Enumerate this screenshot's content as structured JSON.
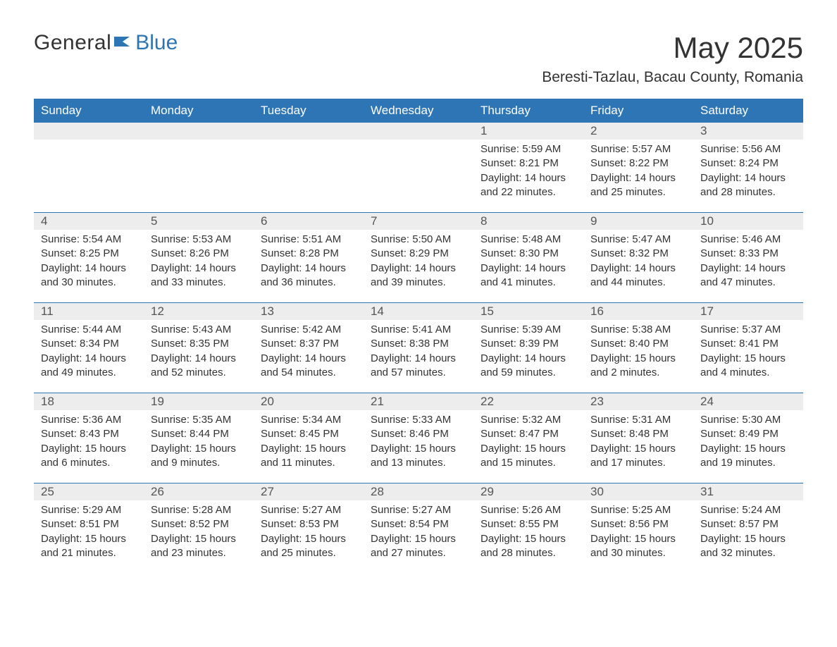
{
  "logo": {
    "text1": "General",
    "text2": "Blue"
  },
  "title": "May 2025",
  "subtitle": "Beresti-Tazlau, Bacau County, Romania",
  "colors": {
    "header_bg": "#2e75b6",
    "header_text": "#ffffff",
    "daynum_bg": "#ededed",
    "daynum_text": "#555555",
    "body_text": "#333333",
    "week_border": "#2e75b6",
    "page_bg": "#ffffff",
    "logo_blue": "#2e75b6"
  },
  "fonts": {
    "title_size_pt": 32,
    "subtitle_size_pt": 16,
    "header_size_pt": 13,
    "daynum_size_pt": 13,
    "body_size_pt": 11
  },
  "layout": {
    "columns": 7,
    "rows": 5
  },
  "day_headers": [
    "Sunday",
    "Monday",
    "Tuesday",
    "Wednesday",
    "Thursday",
    "Friday",
    "Saturday"
  ],
  "weeks": [
    [
      {
        "num": "",
        "sunrise": "",
        "sunset": "",
        "daylight": ""
      },
      {
        "num": "",
        "sunrise": "",
        "sunset": "",
        "daylight": ""
      },
      {
        "num": "",
        "sunrise": "",
        "sunset": "",
        "daylight": ""
      },
      {
        "num": "",
        "sunrise": "",
        "sunset": "",
        "daylight": ""
      },
      {
        "num": "1",
        "sunrise": "Sunrise: 5:59 AM",
        "sunset": "Sunset: 8:21 PM",
        "daylight": "Daylight: 14 hours and 22 minutes."
      },
      {
        "num": "2",
        "sunrise": "Sunrise: 5:57 AM",
        "sunset": "Sunset: 8:22 PM",
        "daylight": "Daylight: 14 hours and 25 minutes."
      },
      {
        "num": "3",
        "sunrise": "Sunrise: 5:56 AM",
        "sunset": "Sunset: 8:24 PM",
        "daylight": "Daylight: 14 hours and 28 minutes."
      }
    ],
    [
      {
        "num": "4",
        "sunrise": "Sunrise: 5:54 AM",
        "sunset": "Sunset: 8:25 PM",
        "daylight": "Daylight: 14 hours and 30 minutes."
      },
      {
        "num": "5",
        "sunrise": "Sunrise: 5:53 AM",
        "sunset": "Sunset: 8:26 PM",
        "daylight": "Daylight: 14 hours and 33 minutes."
      },
      {
        "num": "6",
        "sunrise": "Sunrise: 5:51 AM",
        "sunset": "Sunset: 8:28 PM",
        "daylight": "Daylight: 14 hours and 36 minutes."
      },
      {
        "num": "7",
        "sunrise": "Sunrise: 5:50 AM",
        "sunset": "Sunset: 8:29 PM",
        "daylight": "Daylight: 14 hours and 39 minutes."
      },
      {
        "num": "8",
        "sunrise": "Sunrise: 5:48 AM",
        "sunset": "Sunset: 8:30 PM",
        "daylight": "Daylight: 14 hours and 41 minutes."
      },
      {
        "num": "9",
        "sunrise": "Sunrise: 5:47 AM",
        "sunset": "Sunset: 8:32 PM",
        "daylight": "Daylight: 14 hours and 44 minutes."
      },
      {
        "num": "10",
        "sunrise": "Sunrise: 5:46 AM",
        "sunset": "Sunset: 8:33 PM",
        "daylight": "Daylight: 14 hours and 47 minutes."
      }
    ],
    [
      {
        "num": "11",
        "sunrise": "Sunrise: 5:44 AM",
        "sunset": "Sunset: 8:34 PM",
        "daylight": "Daylight: 14 hours and 49 minutes."
      },
      {
        "num": "12",
        "sunrise": "Sunrise: 5:43 AM",
        "sunset": "Sunset: 8:35 PM",
        "daylight": "Daylight: 14 hours and 52 minutes."
      },
      {
        "num": "13",
        "sunrise": "Sunrise: 5:42 AM",
        "sunset": "Sunset: 8:37 PM",
        "daylight": "Daylight: 14 hours and 54 minutes."
      },
      {
        "num": "14",
        "sunrise": "Sunrise: 5:41 AM",
        "sunset": "Sunset: 8:38 PM",
        "daylight": "Daylight: 14 hours and 57 minutes."
      },
      {
        "num": "15",
        "sunrise": "Sunrise: 5:39 AM",
        "sunset": "Sunset: 8:39 PM",
        "daylight": "Daylight: 14 hours and 59 minutes."
      },
      {
        "num": "16",
        "sunrise": "Sunrise: 5:38 AM",
        "sunset": "Sunset: 8:40 PM",
        "daylight": "Daylight: 15 hours and 2 minutes."
      },
      {
        "num": "17",
        "sunrise": "Sunrise: 5:37 AM",
        "sunset": "Sunset: 8:41 PM",
        "daylight": "Daylight: 15 hours and 4 minutes."
      }
    ],
    [
      {
        "num": "18",
        "sunrise": "Sunrise: 5:36 AM",
        "sunset": "Sunset: 8:43 PM",
        "daylight": "Daylight: 15 hours and 6 minutes."
      },
      {
        "num": "19",
        "sunrise": "Sunrise: 5:35 AM",
        "sunset": "Sunset: 8:44 PM",
        "daylight": "Daylight: 15 hours and 9 minutes."
      },
      {
        "num": "20",
        "sunrise": "Sunrise: 5:34 AM",
        "sunset": "Sunset: 8:45 PM",
        "daylight": "Daylight: 15 hours and 11 minutes."
      },
      {
        "num": "21",
        "sunrise": "Sunrise: 5:33 AM",
        "sunset": "Sunset: 8:46 PM",
        "daylight": "Daylight: 15 hours and 13 minutes."
      },
      {
        "num": "22",
        "sunrise": "Sunrise: 5:32 AM",
        "sunset": "Sunset: 8:47 PM",
        "daylight": "Daylight: 15 hours and 15 minutes."
      },
      {
        "num": "23",
        "sunrise": "Sunrise: 5:31 AM",
        "sunset": "Sunset: 8:48 PM",
        "daylight": "Daylight: 15 hours and 17 minutes."
      },
      {
        "num": "24",
        "sunrise": "Sunrise: 5:30 AM",
        "sunset": "Sunset: 8:49 PM",
        "daylight": "Daylight: 15 hours and 19 minutes."
      }
    ],
    [
      {
        "num": "25",
        "sunrise": "Sunrise: 5:29 AM",
        "sunset": "Sunset: 8:51 PM",
        "daylight": "Daylight: 15 hours and 21 minutes."
      },
      {
        "num": "26",
        "sunrise": "Sunrise: 5:28 AM",
        "sunset": "Sunset: 8:52 PM",
        "daylight": "Daylight: 15 hours and 23 minutes."
      },
      {
        "num": "27",
        "sunrise": "Sunrise: 5:27 AM",
        "sunset": "Sunset: 8:53 PM",
        "daylight": "Daylight: 15 hours and 25 minutes."
      },
      {
        "num": "28",
        "sunrise": "Sunrise: 5:27 AM",
        "sunset": "Sunset: 8:54 PM",
        "daylight": "Daylight: 15 hours and 27 minutes."
      },
      {
        "num": "29",
        "sunrise": "Sunrise: 5:26 AM",
        "sunset": "Sunset: 8:55 PM",
        "daylight": "Daylight: 15 hours and 28 minutes."
      },
      {
        "num": "30",
        "sunrise": "Sunrise: 5:25 AM",
        "sunset": "Sunset: 8:56 PM",
        "daylight": "Daylight: 15 hours and 30 minutes."
      },
      {
        "num": "31",
        "sunrise": "Sunrise: 5:24 AM",
        "sunset": "Sunset: 8:57 PM",
        "daylight": "Daylight: 15 hours and 32 minutes."
      }
    ]
  ]
}
